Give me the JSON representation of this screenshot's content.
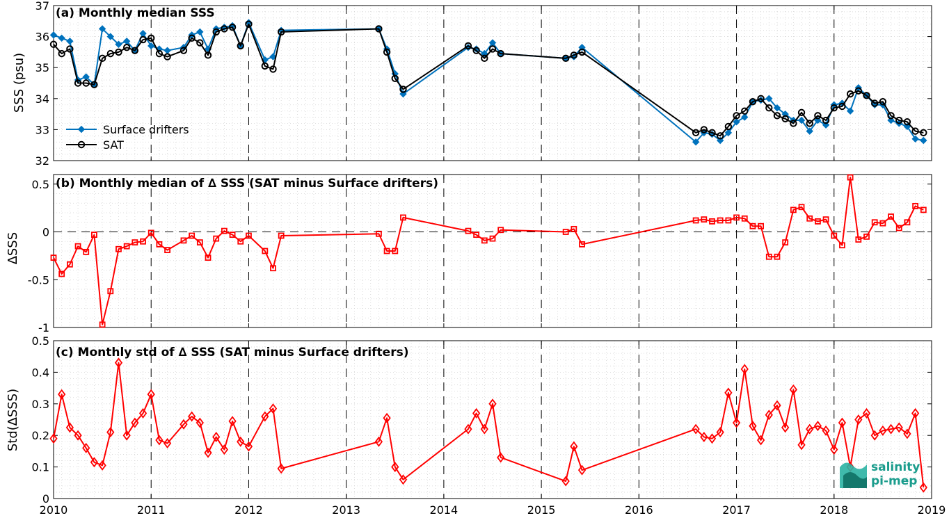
{
  "chart_data": [
    {
      "type": "line",
      "title": "(a) Monthly median SSS",
      "xlabel": "",
      "ylabel": "SSS (psu)",
      "xlim": [
        "2010-01",
        "2019-01"
      ],
      "ylim": [
        32,
        37
      ],
      "yticks": [
        32,
        33,
        34,
        35,
        36,
        37
      ],
      "x_tick_labels": [
        "2010",
        "2011",
        "2012",
        "2013",
        "2014",
        "2015",
        "2016",
        "2017",
        "2018",
        "2019"
      ],
      "grid": true,
      "legend_position": "lower-left",
      "series": [
        {
          "name": "Surface drifters",
          "color": "#0072BD",
          "marker": "filled-diamond",
          "x": [
            "2010-01",
            "2010-02",
            "2010-03",
            "2010-04",
            "2010-05",
            "2010-06",
            "2010-07",
            "2010-08",
            "2010-09",
            "2010-10",
            "2010-11",
            "2010-12",
            "2011-01",
            "2011-02",
            "2011-03",
            "2011-05",
            "2011-06",
            "2011-07",
            "2011-08",
            "2011-09",
            "2011-10",
            "2011-11",
            "2011-12",
            "2012-01",
            "2012-03",
            "2012-04",
            "2012-05",
            "2013-05",
            "2013-06",
            "2013-07",
            "2013-08",
            "2014-04",
            "2014-05",
            "2014-06",
            "2014-07",
            "2014-08",
            "2015-04",
            "2015-05",
            "2015-06",
            "2016-08",
            "2016-09",
            "2016-10",
            "2016-11",
            "2016-12",
            "2017-01",
            "2017-02",
            "2017-03",
            "2017-04",
            "2017-05",
            "2017-06",
            "2017-07",
            "2017-08",
            "2017-09",
            "2017-10",
            "2017-11",
            "2017-12",
            "2018-01",
            "2018-02",
            "2018-03",
            "2018-04",
            "2018-05",
            "2018-06",
            "2018-07",
            "2018-08",
            "2018-09",
            "2018-10",
            "2018-11",
            "2018-12"
          ],
          "values": [
            36.05,
            35.95,
            35.85,
            34.6,
            34.7,
            34.45,
            36.25,
            36.0,
            35.75,
            35.85,
            35.55,
            36.1,
            35.7,
            35.6,
            35.55,
            35.65,
            36.05,
            36.15,
            35.6,
            36.25,
            36.3,
            36.35,
            35.7,
            36.45,
            35.25,
            35.35,
            36.2,
            36.25,
            35.6,
            34.8,
            34.15,
            35.65,
            35.6,
            35.45,
            35.8,
            35.45,
            35.3,
            35.35,
            35.65,
            32.6,
            32.9,
            32.85,
            32.65,
            32.9,
            33.25,
            33.4,
            33.9,
            33.95,
            34.0,
            33.7,
            33.5,
            33.3,
            33.3,
            32.95,
            33.3,
            33.15,
            33.8,
            33.85,
            33.6,
            34.35,
            34.1,
            33.8,
            33.8,
            33.3,
            33.2,
            33.1,
            32.7,
            32.65
          ]
        },
        {
          "name": "SAT",
          "color": "#000000",
          "marker": "open-circle",
          "x": [
            "2010-01",
            "2010-02",
            "2010-03",
            "2010-04",
            "2010-05",
            "2010-06",
            "2010-07",
            "2010-08",
            "2010-09",
            "2010-10",
            "2010-11",
            "2010-12",
            "2011-01",
            "2011-02",
            "2011-03",
            "2011-05",
            "2011-06",
            "2011-07",
            "2011-08",
            "2011-09",
            "2011-10",
            "2011-11",
            "2011-12",
            "2012-01",
            "2012-03",
            "2012-04",
            "2012-05",
            "2013-05",
            "2013-06",
            "2013-07",
            "2013-08",
            "2014-04",
            "2014-05",
            "2014-06",
            "2014-07",
            "2014-08",
            "2015-04",
            "2015-05",
            "2015-06",
            "2016-08",
            "2016-09",
            "2016-10",
            "2016-11",
            "2016-12",
            "2017-01",
            "2017-02",
            "2017-03",
            "2017-04",
            "2017-05",
            "2017-06",
            "2017-07",
            "2017-08",
            "2017-09",
            "2017-10",
            "2017-11",
            "2017-12",
            "2018-01",
            "2018-02",
            "2018-03",
            "2018-04",
            "2018-05",
            "2018-06",
            "2018-07",
            "2018-08",
            "2018-09",
            "2018-10",
            "2018-11",
            "2018-12"
          ],
          "values": [
            35.75,
            35.45,
            35.6,
            34.5,
            34.5,
            34.45,
            35.3,
            35.45,
            35.5,
            35.65,
            35.55,
            35.9,
            35.95,
            35.45,
            35.35,
            35.55,
            35.95,
            35.8,
            35.4,
            36.15,
            36.25,
            36.3,
            35.7,
            36.4,
            35.05,
            34.95,
            36.15,
            36.25,
            35.5,
            34.65,
            34.3,
            35.7,
            35.55,
            35.3,
            35.6,
            35.45,
            35.3,
            35.4,
            35.5,
            32.9,
            33.0,
            32.9,
            32.8,
            33.1,
            33.45,
            33.6,
            33.9,
            34.0,
            33.7,
            33.45,
            33.35,
            33.2,
            33.55,
            33.2,
            33.45,
            33.3,
            33.7,
            33.75,
            34.15,
            34.25,
            34.1,
            33.85,
            33.9,
            33.45,
            33.3,
            33.25,
            32.95,
            32.9
          ]
        }
      ]
    },
    {
      "type": "line",
      "title": "(b) Monthly median of ∆ SSS (SAT minus Surface drifters)",
      "xlabel": "",
      "ylabel": "∆SSS",
      "xlim": [
        "2010-01",
        "2019-01"
      ],
      "ylim": [
        -1,
        0.6
      ],
      "yticks": [
        -1,
        -0.5,
        0,
        0.5
      ],
      "ytick_labels": [
        "-1",
        "-0.5",
        "0",
        "0.5"
      ],
      "x_tick_labels": [
        "2010",
        "2011",
        "2012",
        "2013",
        "2014",
        "2015",
        "2016",
        "2017",
        "2018",
        "2019"
      ],
      "zero_line": "dashed",
      "grid": true,
      "series": [
        {
          "color": "#FF0000",
          "marker": "open-square",
          "x": [
            "2010-01",
            "2010-02",
            "2010-03",
            "2010-04",
            "2010-05",
            "2010-06",
            "2010-07",
            "2010-08",
            "2010-09",
            "2010-10",
            "2010-11",
            "2010-12",
            "2011-01",
            "2011-02",
            "2011-03",
            "2011-05",
            "2011-06",
            "2011-07",
            "2011-08",
            "2011-09",
            "2011-10",
            "2011-11",
            "2011-12",
            "2012-01",
            "2012-03",
            "2012-04",
            "2012-05",
            "2013-05",
            "2013-06",
            "2013-07",
            "2013-08",
            "2014-04",
            "2014-05",
            "2014-06",
            "2014-07",
            "2014-08",
            "2015-04",
            "2015-05",
            "2015-06",
            "2016-08",
            "2016-09",
            "2016-10",
            "2016-11",
            "2016-12",
            "2017-01",
            "2017-02",
            "2017-03",
            "2017-04",
            "2017-05",
            "2017-06",
            "2017-07",
            "2017-08",
            "2017-09",
            "2017-10",
            "2017-11",
            "2017-12",
            "2018-01",
            "2018-02",
            "2018-03",
            "2018-04",
            "2018-05",
            "2018-06",
            "2018-07",
            "2018-08",
            "2018-09",
            "2018-10",
            "2018-11",
            "2018-12"
          ],
          "values": [
            -0.27,
            -0.44,
            -0.34,
            -0.15,
            -0.21,
            -0.03,
            -0.97,
            -0.62,
            -0.18,
            -0.15,
            -0.11,
            -0.1,
            -0.01,
            -0.13,
            -0.19,
            -0.09,
            -0.04,
            -0.11,
            -0.27,
            -0.07,
            0.01,
            -0.03,
            -0.1,
            -0.04,
            -0.2,
            -0.38,
            -0.04,
            -0.02,
            -0.2,
            -0.2,
            0.15,
            0.01,
            -0.03,
            -0.09,
            -0.07,
            0.02,
            0.0,
            0.03,
            -0.13,
            0.12,
            0.13,
            0.11,
            0.12,
            0.12,
            0.15,
            0.14,
            0.06,
            0.06,
            -0.26,
            -0.26,
            -0.11,
            0.23,
            0.26,
            0.14,
            0.11,
            0.13,
            -0.04,
            -0.14,
            0.57,
            -0.08,
            -0.05,
            0.1,
            0.09,
            0.16,
            0.04,
            0.1,
            0.27,
            0.23
          ]
        }
      ]
    },
    {
      "type": "line",
      "title": "(c) Monthly std of ∆ SSS (SAT minus Surface drifters)",
      "xlabel": "",
      "ylabel": "Std(∆SSS)",
      "xlim": [
        "2010-01",
        "2019-01"
      ],
      "ylim": [
        0,
        0.5
      ],
      "yticks": [
        0,
        0.1,
        0.2,
        0.3,
        0.4,
        0.5
      ],
      "ytick_labels": [
        "0",
        "0.1",
        "0.2",
        "0.3",
        "0.4",
        "0.5"
      ],
      "x_tick_labels": [
        "2010",
        "2011",
        "2012",
        "2013",
        "2014",
        "2015",
        "2016",
        "2017",
        "2018",
        "2019"
      ],
      "grid": true,
      "series": [
        {
          "color": "#FF0000",
          "marker": "open-diamond",
          "x": [
            "2010-01",
            "2010-02",
            "2010-03",
            "2010-04",
            "2010-05",
            "2010-06",
            "2010-07",
            "2010-08",
            "2010-09",
            "2010-10",
            "2010-11",
            "2010-12",
            "2011-01",
            "2011-02",
            "2011-03",
            "2011-05",
            "2011-06",
            "2011-07",
            "2011-08",
            "2011-09",
            "2011-10",
            "2011-11",
            "2011-12",
            "2012-01",
            "2012-03",
            "2012-04",
            "2012-05",
            "2013-05",
            "2013-06",
            "2013-07",
            "2013-08",
            "2014-04",
            "2014-05",
            "2014-06",
            "2014-07",
            "2014-08",
            "2015-04",
            "2015-05",
            "2015-06",
            "2016-08",
            "2016-09",
            "2016-10",
            "2016-11",
            "2016-12",
            "2017-01",
            "2017-02",
            "2017-03",
            "2017-04",
            "2017-05",
            "2017-06",
            "2017-07",
            "2017-08",
            "2017-09",
            "2017-10",
            "2017-11",
            "2017-12",
            "2018-01",
            "2018-02",
            "2018-03",
            "2018-04",
            "2018-05",
            "2018-06",
            "2018-07",
            "2018-08",
            "2018-09",
            "2018-10",
            "2018-11",
            "2018-12"
          ],
          "values": [
            0.19,
            0.33,
            0.225,
            0.2,
            0.16,
            0.115,
            0.105,
            0.21,
            0.43,
            0.2,
            0.24,
            0.27,
            0.33,
            0.185,
            0.175,
            0.235,
            0.26,
            0.24,
            0.145,
            0.195,
            0.155,
            0.245,
            0.18,
            0.165,
            0.26,
            0.285,
            0.095,
            0.18,
            0.255,
            0.1,
            0.06,
            0.22,
            0.27,
            0.22,
            0.3,
            0.13,
            0.055,
            0.165,
            0.09,
            0.22,
            0.195,
            0.19,
            0.21,
            0.335,
            0.24,
            0.41,
            0.23,
            0.185,
            0.265,
            0.295,
            0.225,
            0.345,
            0.17,
            0.22,
            0.23,
            0.215,
            0.155,
            0.24,
            0.1,
            0.25,
            0.27,
            0.2,
            0.215,
            0.22,
            0.225,
            0.205,
            0.27,
            0.035
          ]
        }
      ]
    }
  ],
  "logo": {
    "line1": "salinity",
    "line2": "pi-mep",
    "color": "#1a9c8c"
  }
}
